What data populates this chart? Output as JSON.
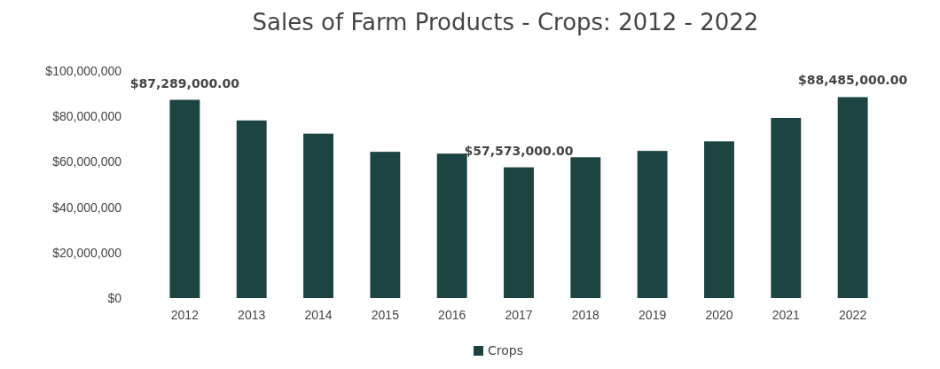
{
  "chart_data": {
    "type": "bar",
    "title": "Sales of Farm Products - Crops: 2012 - 2022",
    "categories": [
      "2012",
      "2013",
      "2014",
      "2015",
      "2016",
      "2017",
      "2018",
      "2019",
      "2020",
      "2021",
      "2022"
    ],
    "series": [
      {
        "name": "Crops",
        "color": "#1b4443",
        "values": [
          87289000,
          78200000,
          72400000,
          64400000,
          63600000,
          57573000,
          62000000,
          64800000,
          69000000,
          79300000,
          88485000
        ],
        "value_labels": [
          "$87,289,000.00",
          null,
          null,
          null,
          null,
          "$57,573,000.00",
          null,
          null,
          null,
          null,
          "$88,485,000.00"
        ]
      }
    ],
    "ylim": [
      0,
      100000000
    ],
    "yticks": [
      {
        "value": 0,
        "label": "$0"
      },
      {
        "value": 20000000,
        "label": "$20,000,000"
      },
      {
        "value": 40000000,
        "label": "$40,000,000"
      },
      {
        "value": 60000000,
        "label": "$60,000,000"
      },
      {
        "value": 80000000,
        "label": "$80,000,000"
      },
      {
        "value": 100000000,
        "label": "$100,000,000"
      }
    ],
    "legend": "bottom"
  }
}
